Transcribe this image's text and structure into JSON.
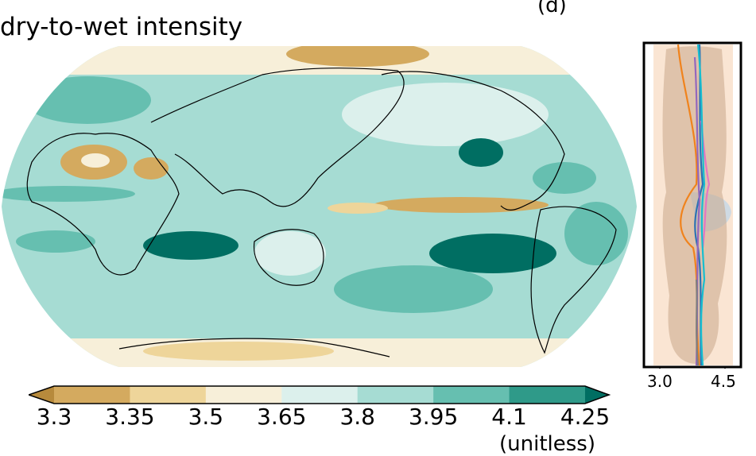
{
  "title": "dry-to-wet intensity",
  "panel_label": "(d)",
  "map": {
    "palette": {
      "brown_dark": "#b78a3c",
      "brown": "#d4aa5f",
      "tan": "#eed59a",
      "cream": "#f7efd9",
      "mint_light": "#dcf0ec",
      "mint": "#a6dcd3",
      "teal": "#66bfb0",
      "teal_dark": "#2f9a89",
      "teal_deep": "#006e62"
    }
  },
  "side_panel": {
    "x_ticks": [
      "3.0",
      "4.5"
    ],
    "line_colors": [
      "#f0831d",
      "#2b73b4",
      "#e377c2",
      "#17becf",
      "#9467bd",
      "#7f7f7f"
    ]
  },
  "colorbar": {
    "tick_labels": [
      "3.3",
      "3.35",
      "3.5",
      "3.65",
      "3.8",
      "3.95",
      "4.1",
      "4.25"
    ],
    "colors": [
      "#b78a3c",
      "#d4aa5f",
      "#eed59a",
      "#f7efd9",
      "#dcf0ec",
      "#a6dcd3",
      "#66bfb0",
      "#2f9a89",
      "#006e62"
    ],
    "units": "(unitless)"
  }
}
